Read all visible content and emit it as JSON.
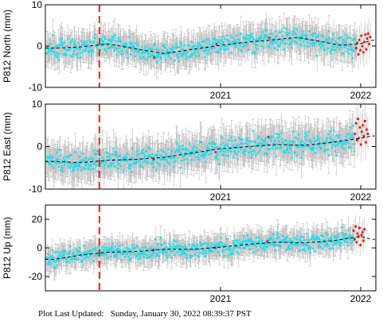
{
  "footer": {
    "label": "Plot Last Updated:",
    "timestamp": "Sunday, January 30, 2022 08:39:37 PST"
  },
  "colors": {
    "final_points": "#22ddee",
    "rapid_points": "#ee1111",
    "error_bars": "#bbbbbb",
    "model_line": "#000000",
    "event_line": "#ee2222"
  },
  "chart_data": [
    {
      "type": "scatter",
      "station": "P812",
      "component": "North",
      "ylabel": "P812 North (mm)",
      "ylim": [
        -10,
        10
      ],
      "yticks": [
        "-10",
        "0",
        "10"
      ],
      "xticks": [
        "2021",
        "2022"
      ],
      "xlim": [
        "2019-10-01",
        "2022-02-10"
      ],
      "event_line_date": "2020-02-20",
      "model_trend": [
        [
          2019.82,
          -0.5
        ],
        [
          2020.0,
          -0.2
        ],
        [
          2020.2,
          0.5
        ],
        [
          2020.45,
          -1.0
        ],
        [
          2020.6,
          -1.8
        ],
        [
          2020.8,
          -0.8
        ],
        [
          2021.0,
          0.2
        ],
        [
          2021.2,
          1.0
        ],
        [
          2021.4,
          1.6
        ],
        [
          2021.55,
          2.1
        ],
        [
          2021.7,
          1.2
        ],
        [
          2021.85,
          0.2
        ],
        [
          2022.0,
          0.6
        ],
        [
          2022.08,
          1.4
        ]
      ],
      "series": [
        {
          "values_note": "final",
          "scatter_sd": 2.0,
          "error_bar": 3.5
        },
        {
          "values_note": "rapid",
          "start": 2021.97,
          "values": [
            -0.5,
            0.8,
            -2.0,
            1.5,
            -1.0,
            2.5,
            0.0,
            -1.5,
            1.0,
            2.8,
            -0.8,
            1.8,
            3.0,
            0.5,
            2.2
          ]
        }
      ]
    },
    {
      "type": "scatter",
      "station": "P812",
      "component": "East",
      "ylabel": "P812 East (mm)",
      "ylim": [
        -10,
        10
      ],
      "yticks": [
        "-10",
        "0",
        "10"
      ],
      "xticks": [
        "2021",
        "2022"
      ],
      "xlim": [
        "2019-10-01",
        "2022-02-10"
      ],
      "event_line_date": "2020-02-20",
      "model_trend": [
        [
          2019.82,
          -3.5
        ],
        [
          2020.0,
          -3.8
        ],
        [
          2020.2,
          -3.2
        ],
        [
          2020.4,
          -3.0
        ],
        [
          2020.6,
          -2.5
        ],
        [
          2020.8,
          -1.5
        ],
        [
          2021.0,
          -0.5
        ],
        [
          2021.2,
          0.0
        ],
        [
          2021.4,
          0.5
        ],
        [
          2021.6,
          0.3
        ],
        [
          2021.8,
          1.0
        ],
        [
          2022.0,
          2.0
        ],
        [
          2022.08,
          2.5
        ]
      ],
      "series": [
        {
          "values_note": "final",
          "scatter_sd": 2.2,
          "error_bar": 4.0
        },
        {
          "values_note": "rapid",
          "start": 2021.96,
          "values": [
            3.0,
            5.5,
            1.5,
            6.5,
            2.0,
            4.5,
            0.5,
            3.5,
            5.0,
            2.5,
            6.0,
            1.0,
            4.0,
            3.0
          ]
        }
      ]
    },
    {
      "type": "scatter",
      "station": "P812",
      "component": "Up",
      "ylabel": "P812 Up (mm)",
      "ylim": [
        -30,
        30
      ],
      "yticks": [
        "-20",
        "0",
        "20"
      ],
      "xticks": [
        "2021",
        "2022"
      ],
      "xlim": [
        "2019-10-01",
        "2022-02-10"
      ],
      "event_line_date": "2020-02-20",
      "model_trend": [
        [
          2019.82,
          -8.0
        ],
        [
          2020.0,
          -5.0
        ],
        [
          2020.2,
          -3.0
        ],
        [
          2020.4,
          -2.5
        ],
        [
          2020.6,
          -1.0
        ],
        [
          2020.8,
          -1.0
        ],
        [
          2021.0,
          0.5
        ],
        [
          2021.2,
          2.5
        ],
        [
          2021.4,
          4.0
        ],
        [
          2021.6,
          3.5
        ],
        [
          2021.8,
          5.0
        ],
        [
          2022.0,
          8.0
        ],
        [
          2022.08,
          6.0
        ]
      ],
      "series": [
        {
          "values_note": "final",
          "scatter_sd": 5.0,
          "error_bar": 8.0
        },
        {
          "values_note": "rapid",
          "start": 2021.95,
          "values": [
            12,
            6,
            15,
            4,
            10,
            8,
            14,
            2,
            9,
            11,
            5,
            13
          ]
        }
      ]
    }
  ]
}
